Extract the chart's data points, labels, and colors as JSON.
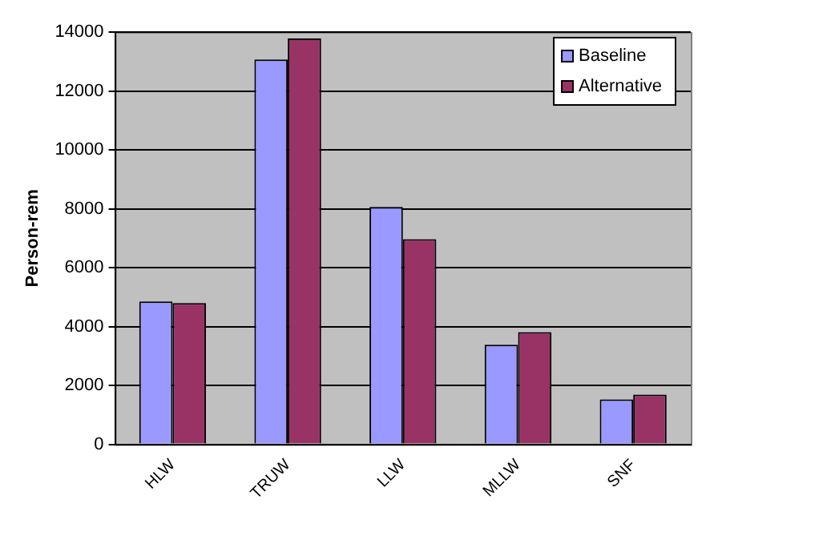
{
  "chart_data": {
    "type": "bar",
    "ylabel": "Person-rem",
    "categories": [
      "HLW",
      "TRUW",
      "LLW",
      "MLLW",
      "SNF"
    ],
    "series": [
      {
        "name": "Baseline",
        "color": "#9999ff",
        "values": [
          4850,
          13070,
          8060,
          3380,
          1530
        ]
      },
      {
        "name": "Alternative",
        "color": "#993366",
        "values": [
          4800,
          13780,
          6970,
          3810,
          1690
        ]
      }
    ],
    "ylim": [
      0,
      14000
    ],
    "yticks": [
      0,
      2000,
      4000,
      6000,
      8000,
      10000,
      12000,
      14000
    ],
    "grid": "y",
    "legend": "top right"
  }
}
